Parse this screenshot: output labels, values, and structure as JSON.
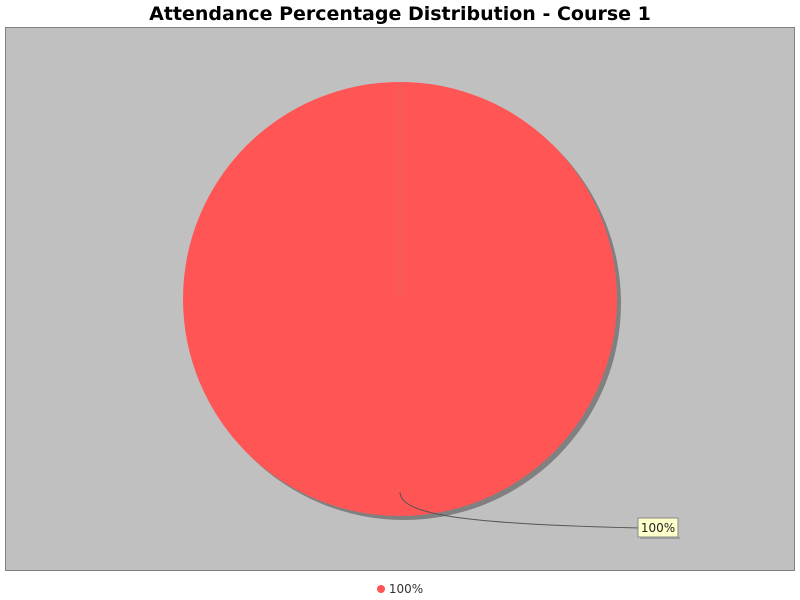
{
  "chart_data": {
    "type": "pie",
    "title": "Attendance Percentage Distribution - Course 1",
    "slices": [
      {
        "label": "100%",
        "value": 100,
        "color": "#ff5555",
        "data_label": "100%"
      }
    ],
    "legend": {
      "placement": "bottom",
      "entries": [
        "100%"
      ]
    },
    "colors": {
      "plot_background": "#c0c0c0",
      "shadow": "#808080",
      "label_background": "#ffffcc"
    }
  }
}
